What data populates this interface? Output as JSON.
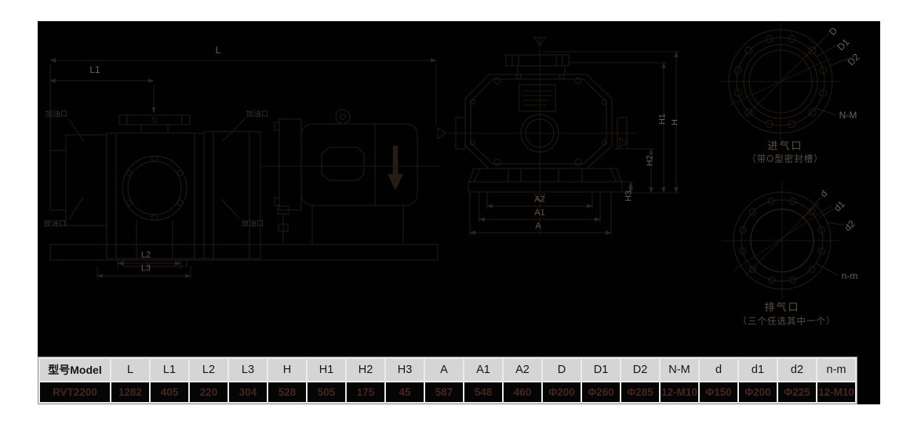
{
  "table": {
    "headers": [
      "型号Model",
      "L",
      "L1",
      "L2",
      "L3",
      "H",
      "H1",
      "H2",
      "H3",
      "A",
      "A1",
      "A2",
      "D",
      "D1",
      "D2",
      "N-M",
      "d",
      "d1",
      "d2",
      "n-m"
    ],
    "row": [
      "RVT2200",
      "1282",
      "405",
      "220",
      "304",
      "528",
      "505",
      "175",
      "45",
      "587",
      "548",
      "460",
      "Φ200",
      "Φ260",
      "Φ285",
      "12-M10",
      "Φ150",
      "Φ200",
      "Φ225",
      "12-M10"
    ]
  },
  "drawing": {
    "labels": {
      "dim_l": "L",
      "dim_l1": "L1",
      "dim_l2": "L2",
      "dim_l3": "L3",
      "port_fill_left": "加油口",
      "port_fill_right": "加油口",
      "port_drain_left": "放油口",
      "port_drain_right": "放油口",
      "dim_a2": "A2",
      "dim_a1": "A1",
      "dim_a": "A",
      "dim_h1": "H1",
      "dim_h": "H",
      "dim_h2": "H2",
      "dim_h3": "H3",
      "dim_d": "D",
      "dim_d1": "D1",
      "dim_d2": "D2",
      "dim_nm": "N-M",
      "dim_d_low": "d",
      "dim_d1_low": "d1",
      "dim_d2_low": "d2",
      "dim_nm_low": "n-m",
      "intake_title": "进气口",
      "intake_note": "（带O型密封槽）",
      "exhaust_title": "排气口",
      "exhaust_note": "（三个任选其中一个）"
    }
  },
  "colors": {
    "background": "#ffffff",
    "drawing_background": "#010101",
    "drawing_line": "#241c16",
    "label_gray": "#6b6158",
    "table_header_bg": "#d5d5d5",
    "table_header_text": "#161616",
    "table_cell_bg": "#050505",
    "table_value_text": "#46251f"
  }
}
